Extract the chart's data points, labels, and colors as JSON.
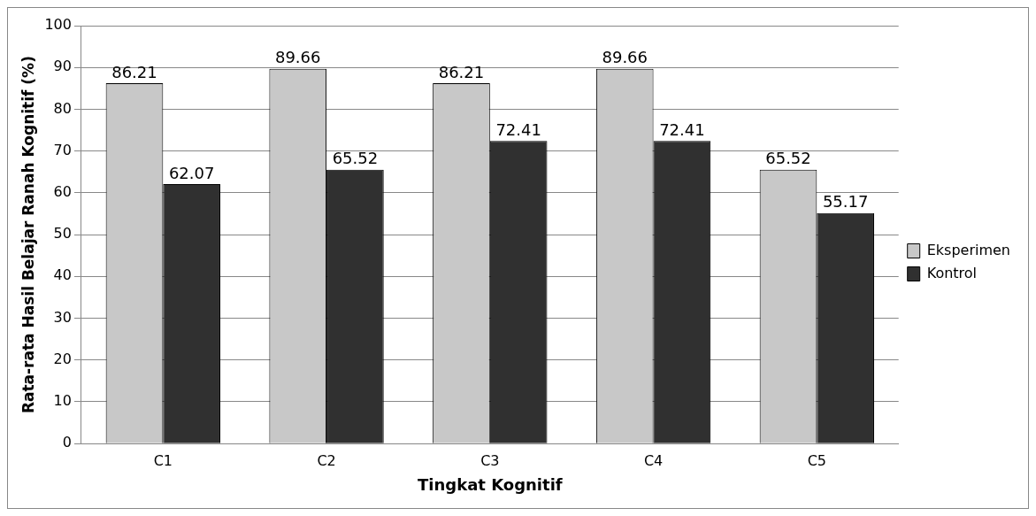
{
  "chart_data": {
    "type": "bar",
    "xlabel": "Tingkat Kognitif",
    "ylabel": "Rata-rata Hasil Belajar Ranah Kognitif (%)",
    "categories": [
      "C1",
      "C2",
      "C3",
      "C4",
      "C5"
    ],
    "series": [
      {
        "name": "Eksperimen",
        "color": "#c8c8c8",
        "values": [
          86.21,
          89.66,
          86.21,
          89.66,
          65.52
        ]
      },
      {
        "name": "Kontrol",
        "color": "#303030",
        "values": [
          62.07,
          65.52,
          72.41,
          72.41,
          55.17
        ]
      }
    ],
    "ylim": [
      0,
      100
    ],
    "yticks": [
      0,
      10,
      20,
      30,
      40,
      50,
      60,
      70,
      80,
      90,
      100
    ],
    "grid": "y",
    "legend": "right",
    "data_labels": true
  }
}
